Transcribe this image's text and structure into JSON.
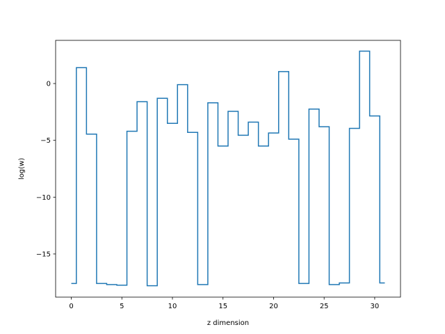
{
  "chart_data": {
    "type": "line",
    "drawstyle": "steps-mid",
    "title": "",
    "xlabel": "z dimension",
    "ylabel": "log(w)",
    "xlim": [
      -1.55,
      32.55
    ],
    "ylim": [
      -18.8,
      3.8
    ],
    "xticks": [
      0,
      5,
      10,
      15,
      20,
      25,
      30
    ],
    "yticks": [
      0,
      -5,
      -10,
      -15
    ],
    "ytick_labels": [
      "0",
      "−5",
      "−10",
      "−15"
    ],
    "grid": false,
    "legend": "none",
    "color": "#1f77b4",
    "series": [
      {
        "x": [
          0,
          1,
          2,
          3,
          4,
          5,
          6,
          7,
          8,
          9,
          10,
          11,
          12,
          13,
          14,
          15,
          16,
          17,
          18,
          19,
          20,
          21,
          22,
          23,
          24,
          25,
          26,
          27,
          28,
          29,
          30,
          31
        ],
        "y": [
          -17.6,
          1.4,
          -4.45,
          -17.6,
          -17.7,
          -17.75,
          -4.2,
          -1.6,
          -17.8,
          -1.3,
          -3.5,
          -0.1,
          -4.3,
          -17.7,
          -1.7,
          -5.5,
          -2.45,
          -4.55,
          -3.4,
          -5.5,
          -4.35,
          1.05,
          -4.9,
          -17.6,
          -2.25,
          -3.8,
          -17.7,
          -17.55,
          -3.95,
          2.85,
          -2.85,
          -17.55
        ]
      }
    ]
  }
}
